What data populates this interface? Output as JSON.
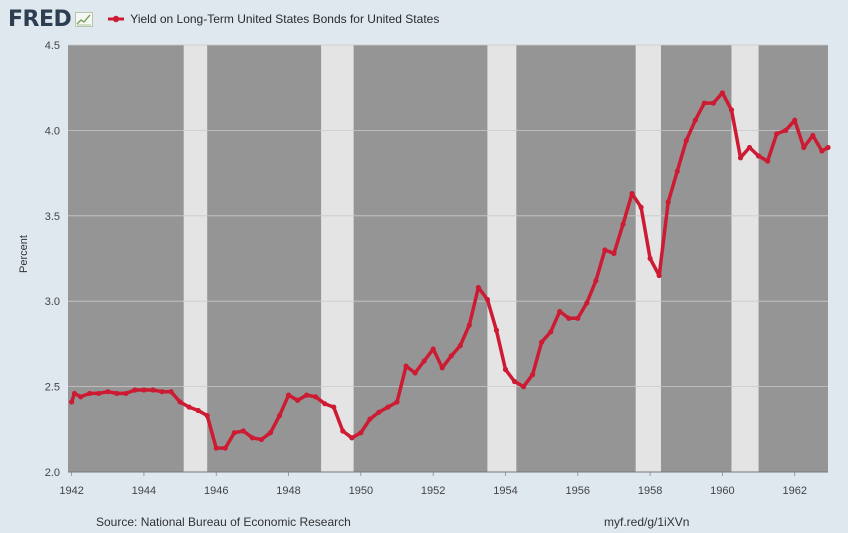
{
  "header": {
    "logo": "FRED",
    "legend_label": "Yield on Long-Term United States Bonds for United States",
    "logo_icon": "fred-chart-icon"
  },
  "footer": {
    "source": "Source: National Bureau of Economic Research",
    "link": "myf.red/g/1iXVn"
  },
  "colors": {
    "series": "#cc1b32",
    "recession": "#e4e4e4",
    "plot_bg": "#959595",
    "page_bg": "#dfe7ef"
  },
  "chart_data": {
    "type": "line",
    "title": "",
    "xlabel": "",
    "ylabel": "Percent",
    "ylim": [
      2.0,
      4.5
    ],
    "xlim": [
      1941.9,
      1962.92
    ],
    "yticks": [
      "2.0",
      "2.5",
      "3.0",
      "3.5",
      "4.0",
      "4.5"
    ],
    "xticks": [
      "1942",
      "1944",
      "1946",
      "1948",
      "1950",
      "1952",
      "1954",
      "1956",
      "1958",
      "1960",
      "1962"
    ],
    "recessions": [
      [
        1945.1,
        1945.75
      ],
      [
        1948.9,
        1949.8
      ],
      [
        1953.5,
        1954.3
      ],
      [
        1957.6,
        1958.3
      ],
      [
        1960.25,
        1961.0
      ]
    ],
    "grid": true,
    "legend": "top-left",
    "series": [
      {
        "name": "Yield on Long-Term United States Bonds for United States",
        "x": [
          1942.0,
          1942.08,
          1942.25,
          1942.5,
          1942.75,
          1943.0,
          1943.25,
          1943.5,
          1943.75,
          1944.0,
          1944.25,
          1944.5,
          1944.75,
          1945.0,
          1945.25,
          1945.5,
          1945.75,
          1946.0,
          1946.25,
          1946.5,
          1946.75,
          1947.0,
          1947.25,
          1947.5,
          1947.75,
          1948.0,
          1948.25,
          1948.5,
          1948.75,
          1949.0,
          1949.25,
          1949.5,
          1949.75,
          1950.0,
          1950.25,
          1950.5,
          1950.75,
          1951.0,
          1951.25,
          1951.5,
          1951.75,
          1952.0,
          1952.25,
          1952.5,
          1952.75,
          1953.0,
          1953.25,
          1953.5,
          1953.75,
          1954.0,
          1954.25,
          1954.5,
          1954.75,
          1955.0,
          1955.25,
          1955.5,
          1955.75,
          1956.0,
          1956.25,
          1956.5,
          1956.75,
          1957.0,
          1957.25,
          1957.5,
          1957.75,
          1958.0,
          1958.25,
          1958.5,
          1958.75,
          1959.0,
          1959.25,
          1959.5,
          1959.75,
          1960.0,
          1960.25,
          1960.5,
          1960.75,
          1961.0,
          1961.25,
          1961.5,
          1961.75,
          1962.0,
          1962.25,
          1962.5,
          1962.75,
          1962.92
        ],
        "values": [
          2.41,
          2.46,
          2.44,
          2.46,
          2.46,
          2.47,
          2.46,
          2.46,
          2.48,
          2.48,
          2.48,
          2.47,
          2.47,
          2.41,
          2.38,
          2.36,
          2.33,
          2.14,
          2.14,
          2.23,
          2.24,
          2.2,
          2.19,
          2.23,
          2.33,
          2.45,
          2.42,
          2.45,
          2.44,
          2.4,
          2.38,
          2.24,
          2.2,
          2.23,
          2.31,
          2.35,
          2.38,
          2.41,
          2.62,
          2.58,
          2.65,
          2.72,
          2.61,
          2.68,
          2.74,
          2.86,
          3.08,
          3.01,
          2.83,
          2.6,
          2.53,
          2.5,
          2.57,
          2.76,
          2.82,
          2.94,
          2.9,
          2.9,
          2.99,
          3.12,
          3.3,
          3.28,
          3.45,
          3.63,
          3.55,
          3.25,
          3.15,
          3.58,
          3.76,
          3.94,
          4.06,
          4.16,
          4.16,
          4.22,
          4.12,
          3.84,
          3.9,
          3.85,
          3.82,
          3.98,
          4.0,
          4.06,
          3.9,
          3.97,
          3.88,
          3.9
        ]
      }
    ]
  }
}
